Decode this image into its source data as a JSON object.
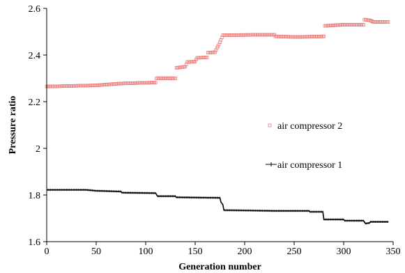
{
  "chart_data": {
    "type": "scatter",
    "title": "",
    "xlabel": "Generation number",
    "ylabel": "Pressure ratio",
    "xlim": [
      0,
      350
    ],
    "ylim": [
      1.6,
      2.6
    ],
    "xticks": [
      "0",
      "50",
      "100",
      "150",
      "200",
      "250",
      "300",
      "350"
    ],
    "yticks": [
      "1.6",
      "1.8",
      "2",
      "2.2",
      "2.4",
      "2.6"
    ],
    "grid": false,
    "legend_position": "right",
    "series": [
      {
        "name": "air compressor 2",
        "style": "markers",
        "marker": "open-square",
        "color": "#e87c7c",
        "points": [
          [
            0,
            2.265
          ],
          [
            50,
            2.27
          ],
          [
            75,
            2.278
          ],
          [
            110,
            2.282
          ],
          [
            111,
            2.3
          ],
          [
            130,
            2.3
          ],
          [
            131,
            2.345
          ],
          [
            140,
            2.35
          ],
          [
            142,
            2.37
          ],
          [
            150,
            2.372
          ],
          [
            152,
            2.388
          ],
          [
            162,
            2.39
          ],
          [
            163,
            2.41
          ],
          [
            170,
            2.412
          ],
          [
            172,
            2.43
          ],
          [
            174,
            2.445
          ],
          [
            178,
            2.485
          ],
          [
            230,
            2.487
          ],
          [
            231,
            2.48
          ],
          [
            255,
            2.477
          ],
          [
            260,
            2.478
          ],
          [
            280,
            2.48
          ],
          [
            281,
            2.525
          ],
          [
            300,
            2.53
          ],
          [
            320,
            2.53
          ],
          [
            321,
            2.552
          ],
          [
            327,
            2.548
          ],
          [
            330,
            2.542
          ],
          [
            345,
            2.542
          ]
        ]
      },
      {
        "name": "air compressor 1",
        "style": "line",
        "color": "#000000",
        "points": [
          [
            0,
            1.822
          ],
          [
            40,
            1.822
          ],
          [
            50,
            1.818
          ],
          [
            75,
            1.815
          ],
          [
            76,
            1.81
          ],
          [
            110,
            1.808
          ],
          [
            112,
            1.795
          ],
          [
            130,
            1.795
          ],
          [
            131,
            1.79
          ],
          [
            175,
            1.788
          ],
          [
            176,
            1.77
          ],
          [
            178,
            1.758
          ],
          [
            179,
            1.735
          ],
          [
            230,
            1.732
          ],
          [
            265,
            1.732
          ],
          [
            266,
            1.728
          ],
          [
            279,
            1.728
          ],
          [
            280,
            1.695
          ],
          [
            300,
            1.695
          ],
          [
            301,
            1.69
          ],
          [
            320,
            1.69
          ],
          [
            322,
            1.678
          ],
          [
            326,
            1.68
          ],
          [
            327,
            1.685
          ],
          [
            345,
            1.685
          ]
        ]
      }
    ]
  }
}
